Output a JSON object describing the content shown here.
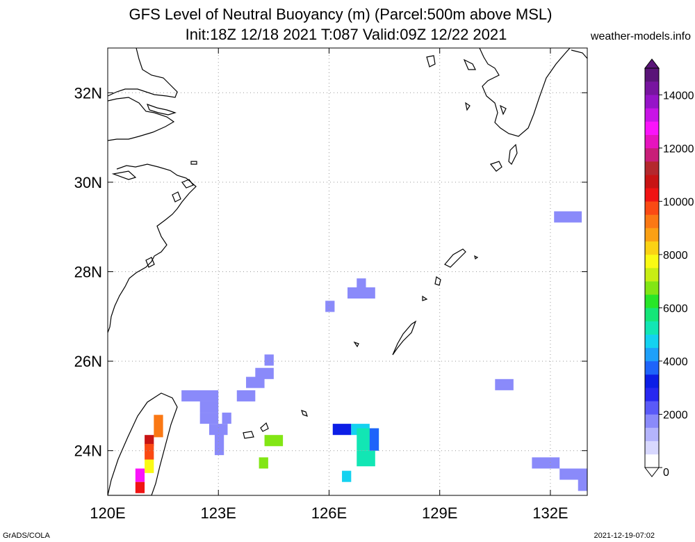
{
  "header": {
    "title_line1": "GFS Level of Neutral Buoyancy (m) (Parcel:500m above MSL)",
    "title_line2": "Init:18Z 12/18 2021 T:087 Valid:09Z 12/22 2021",
    "site": "weather-models.info"
  },
  "footer": {
    "left": "GrADS/COLA",
    "right": "2021-12-19-07:02"
  },
  "chart_data": {
    "type": "heatmap",
    "title": "GFS Level of Neutral Buoyancy (m) (Parcel:500m above MSL)",
    "subtitle": "Init:18Z 12/18 2021 T:087 Valid:09Z 12/22 2021",
    "xlim": [
      120,
      133
    ],
    "ylim": [
      23,
      33
    ],
    "x_ticks": [
      {
        "value": 120,
        "label": "120E"
      },
      {
        "value": 123,
        "label": "123E"
      },
      {
        "value": 126,
        "label": "126E"
      },
      {
        "value": 129,
        "label": "129E"
      },
      {
        "value": 132,
        "label": "132E"
      }
    ],
    "y_ticks": [
      {
        "value": 24,
        "label": "24N"
      },
      {
        "value": 26,
        "label": "26N"
      },
      {
        "value": 28,
        "label": "28N"
      },
      {
        "value": 30,
        "label": "30N"
      },
      {
        "value": 32,
        "label": "32N"
      }
    ],
    "grid": true,
    "colorbar": {
      "min": 0,
      "max": 15000,
      "ticks": [
        {
          "value": 0,
          "label": "0"
        },
        {
          "value": 2000,
          "label": "2000"
        },
        {
          "value": 4000,
          "label": "4000"
        },
        {
          "value": 6000,
          "label": "6000"
        },
        {
          "value": 8000,
          "label": "8000"
        },
        {
          "value": 10000,
          "label": "10000"
        },
        {
          "value": 12000,
          "label": "12000"
        },
        {
          "value": 14000,
          "label": "14000"
        }
      ],
      "colors": [
        "#ffffff",
        "#d8d8fe",
        "#b4b4fc",
        "#8a8afa",
        "#5a5af8",
        "#2828f0",
        "#0c1ee6",
        "#1e64fa",
        "#1ea0fa",
        "#14d2f0",
        "#12e6b4",
        "#14e678",
        "#28e628",
        "#82e614",
        "#c8ee14",
        "#fafa14",
        "#fad214",
        "#faa014",
        "#fa7814",
        "#fa4a14",
        "#f01414",
        "#c81414",
        "#b4282d",
        "#c81e78",
        "#e614be",
        "#fa14fa",
        "#c814e6",
        "#9614c8",
        "#7814a0",
        "#5a1478"
      ]
    },
    "cells": [
      {
        "lat": 29.1,
        "lon": 132.1,
        "w": 0.75,
        "h": 0.25,
        "value": 1500
      },
      {
        "lat": 27.4,
        "lon": 126.5,
        "w": 0.75,
        "h": 0.25,
        "value": 1500
      },
      {
        "lat": 27.6,
        "lon": 126.75,
        "w": 0.25,
        "h": 0.25,
        "value": 1500
      },
      {
        "lat": 27.1,
        "lon": 125.9,
        "w": 0.25,
        "h": 0.25,
        "value": 1500
      },
      {
        "lat": 25.9,
        "lon": 124.25,
        "w": 0.25,
        "h": 0.25,
        "value": 1500
      },
      {
        "lat": 25.6,
        "lon": 124.0,
        "w": 0.5,
        "h": 0.25,
        "value": 1500
      },
      {
        "lat": 25.4,
        "lon": 123.75,
        "w": 0.5,
        "h": 0.25,
        "value": 1500
      },
      {
        "lat": 25.1,
        "lon": 123.5,
        "w": 0.5,
        "h": 0.25,
        "value": 1500
      },
      {
        "lat": 25.1,
        "lon": 122.0,
        "w": 1.0,
        "h": 0.25,
        "value": 1500
      },
      {
        "lat": 24.85,
        "lon": 122.5,
        "w": 0.5,
        "h": 0.25,
        "value": 1500
      },
      {
        "lat": 24.6,
        "lon": 122.5,
        "w": 0.5,
        "h": 0.25,
        "value": 1500
      },
      {
        "lat": 24.6,
        "lon": 123.1,
        "w": 0.25,
        "h": 0.25,
        "value": 1500
      },
      {
        "lat": 24.35,
        "lon": 122.75,
        "w": 0.5,
        "h": 0.25,
        "value": 1500
      },
      {
        "lat": 23.9,
        "lon": 122.9,
        "w": 0.25,
        "h": 0.65,
        "value": 1500
      },
      {
        "lat": 25.35,
        "lon": 130.5,
        "w": 0.5,
        "h": 0.25,
        "value": 1500
      },
      {
        "lat": 23.6,
        "lon": 131.5,
        "w": 0.75,
        "h": 0.25,
        "value": 1500
      },
      {
        "lat": 23.35,
        "lon": 132.25,
        "w": 0.75,
        "h": 0.25,
        "value": 1500
      },
      {
        "lat": 23.1,
        "lon": 132.75,
        "w": 0.5,
        "h": 0.25,
        "value": 1500
      },
      {
        "lat": 24.35,
        "lon": 126.1,
        "w": 0.5,
        "h": 0.25,
        "value": 3400
      },
      {
        "lat": 24.35,
        "lon": 126.6,
        "w": 0.5,
        "h": 0.25,
        "value": 4800
      },
      {
        "lat": 24.0,
        "lon": 126.75,
        "w": 0.6,
        "h": 0.5,
        "value": 5300
      },
      {
        "lat": 23.65,
        "lon": 126.75,
        "w": 0.5,
        "h": 0.35,
        "value": 5200
      },
      {
        "lat": 24.0,
        "lon": 127.1,
        "w": 0.25,
        "h": 0.5,
        "value": 3900
      },
      {
        "lat": 23.3,
        "lon": 126.35,
        "w": 0.25,
        "h": 0.25,
        "value": 4600
      },
      {
        "lat": 24.1,
        "lon": 124.25,
        "w": 0.5,
        "h": 0.25,
        "value": 6500
      },
      {
        "lat": 23.6,
        "lon": 124.1,
        "w": 0.25,
        "h": 0.25,
        "value": 6900
      },
      {
        "lat": 24.3,
        "lon": 121.25,
        "w": 0.25,
        "h": 0.5,
        "value": 9000
      },
      {
        "lat": 24.1,
        "lon": 121.0,
        "w": 0.25,
        "h": 0.25,
        "value": 10500
      },
      {
        "lat": 23.8,
        "lon": 121.0,
        "w": 0.25,
        "h": 0.35,
        "value": 9500
      },
      {
        "lat": 23.5,
        "lon": 121.0,
        "w": 0.25,
        "h": 0.3,
        "value": 7500
      },
      {
        "lat": 23.3,
        "lon": 120.75,
        "w": 0.25,
        "h": 0.3,
        "value": 12500
      },
      {
        "lat": 23.05,
        "lon": 120.75,
        "w": 0.25,
        "h": 0.25,
        "value": 10000
      }
    ]
  }
}
